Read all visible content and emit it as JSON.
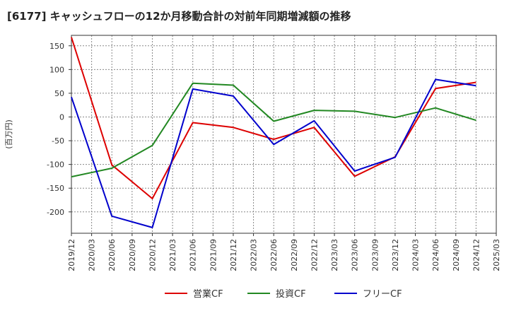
{
  "chart_data": {
    "type": "line",
    "title": "[6177]  キャッシュフローの12か月移動合計の対前年同期増減額の推移",
    "ylabel": "(百万円)",
    "xlabel": "",
    "ylim": [
      -245,
      172
    ],
    "yticks": [
      150,
      100,
      50,
      0,
      -50,
      -100,
      -150,
      -200
    ],
    "ytick_labels": [
      "150",
      "100",
      "50",
      "0",
      "-50",
      "-100",
      "-150",
      "-200"
    ],
    "categories": [
      "2019/12",
      "2020/03",
      "2020/06",
      "2020/09",
      "2020/12",
      "2021/03",
      "2021/06",
      "2021/09",
      "2021/12",
      "2022/03",
      "2022/06",
      "2022/09",
      "2022/12",
      "2023/03",
      "2023/06",
      "2023/09",
      "2023/12",
      "2024/03",
      "2024/06",
      "2024/09",
      "2024/12",
      "2025/03"
    ],
    "grid": true,
    "legend_position": "bottom",
    "series": [
      {
        "name": "営業CF",
        "color": "#dd0000",
        "points": [
          {
            "x": "2019/12",
            "y": 168
          },
          {
            "x": "2020/06",
            "y": -101
          },
          {
            "x": "2020/12",
            "y": -172
          },
          {
            "x": "2021/06",
            "y": -12
          },
          {
            "x": "2021/12",
            "y": -22
          },
          {
            "x": "2022/06",
            "y": -47
          },
          {
            "x": "2022/12",
            "y": -22
          },
          {
            "x": "2023/06",
            "y": -125
          },
          {
            "x": "2023/12",
            "y": -84
          },
          {
            "x": "2024/06",
            "y": 60
          },
          {
            "x": "2024/12",
            "y": 73
          }
        ]
      },
      {
        "name": "投資CF",
        "color": "#228822",
        "points": [
          {
            "x": "2019/12",
            "y": -126
          },
          {
            "x": "2020/06",
            "y": -108
          },
          {
            "x": "2020/12",
            "y": -60
          },
          {
            "x": "2021/06",
            "y": 71
          },
          {
            "x": "2021/12",
            "y": 67
          },
          {
            "x": "2022/06",
            "y": -9
          },
          {
            "x": "2022/12",
            "y": 14
          },
          {
            "x": "2023/06",
            "y": 12
          },
          {
            "x": "2023/12",
            "y": -1
          },
          {
            "x": "2024/06",
            "y": 19
          },
          {
            "x": "2024/12",
            "y": -7
          }
        ]
      },
      {
        "name": "フリーCF",
        "color": "#0000cc",
        "points": [
          {
            "x": "2019/12",
            "y": 42
          },
          {
            "x": "2020/06",
            "y": -209
          },
          {
            "x": "2020/12",
            "y": -233
          },
          {
            "x": "2021/06",
            "y": 59
          },
          {
            "x": "2021/12",
            "y": 44
          },
          {
            "x": "2022/06",
            "y": -58
          },
          {
            "x": "2022/12",
            "y": -8
          },
          {
            "x": "2023/06",
            "y": -114
          },
          {
            "x": "2023/12",
            "y": -85
          },
          {
            "x": "2024/06",
            "y": 79
          },
          {
            "x": "2024/12",
            "y": 66
          }
        ]
      }
    ]
  }
}
